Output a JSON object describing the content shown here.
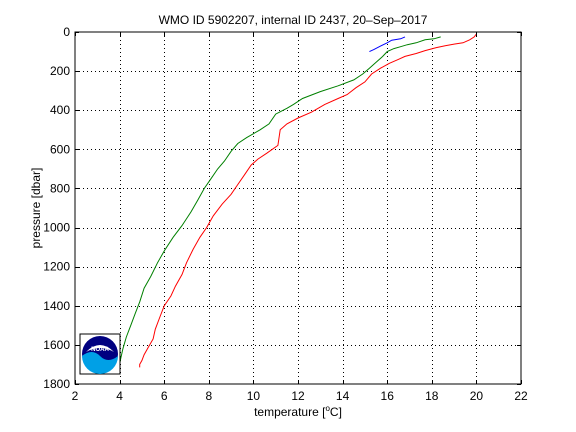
{
  "chart_data": {
    "type": "line",
    "title": "WMO ID 5902207, internal ID 2437, 20–Sep–2017",
    "xlabel": "temperature [°C]",
    "xlabel_parts": {
      "pre": "temperature [",
      "deg": "o",
      "post": "C]"
    },
    "ylabel": "pressure [dbar]",
    "xlim": [
      2,
      22
    ],
    "ylim": [
      0,
      1800
    ],
    "y_reversed": true,
    "grid": true,
    "grid_style": "dotted",
    "xticks": [
      2,
      4,
      6,
      8,
      10,
      12,
      14,
      16,
      18,
      20,
      22
    ],
    "yticks": [
      0,
      200,
      400,
      600,
      800,
      1000,
      1200,
      1400,
      1600,
      1800
    ],
    "series": [
      {
        "color": "#ff0000",
        "points": [
          [
            20.0,
            10
          ],
          [
            19.9,
            25
          ],
          [
            19.7,
            40
          ],
          [
            19.4,
            55
          ],
          [
            19.0,
            62
          ],
          [
            18.6,
            70
          ],
          [
            18.2,
            80
          ],
          [
            17.7,
            95
          ],
          [
            17.3,
            110
          ],
          [
            16.8,
            125
          ],
          [
            16.5,
            140
          ],
          [
            16.1,
            160
          ],
          [
            15.7,
            185
          ],
          [
            15.3,
            215
          ],
          [
            15.0,
            255
          ],
          [
            14.6,
            285
          ],
          [
            14.2,
            320
          ],
          [
            13.8,
            340
          ],
          [
            13.2,
            370
          ],
          [
            12.6,
            410
          ],
          [
            12.0,
            440
          ],
          [
            11.5,
            470
          ],
          [
            11.2,
            500
          ],
          [
            11.1,
            580
          ],
          [
            10.6,
            620
          ],
          [
            10.2,
            650
          ],
          [
            9.9,
            680
          ],
          [
            9.6,
            730
          ],
          [
            9.3,
            780
          ],
          [
            9.0,
            830
          ],
          [
            8.6,
            880
          ],
          [
            8.2,
            940
          ],
          [
            7.9,
            1000
          ],
          [
            7.6,
            1050
          ],
          [
            7.3,
            1110
          ],
          [
            7.0,
            1180
          ],
          [
            6.8,
            1240
          ],
          [
            6.5,
            1300
          ],
          [
            6.3,
            1350
          ],
          [
            6.0,
            1400
          ],
          [
            5.8,
            1460
          ],
          [
            5.6,
            1520
          ],
          [
            5.5,
            1570
          ],
          [
            5.3,
            1610
          ],
          [
            5.1,
            1650
          ],
          [
            5.0,
            1680
          ],
          [
            4.9,
            1700
          ],
          [
            4.9,
            1715
          ]
        ]
      },
      {
        "color": "#008000",
        "points": [
          [
            18.4,
            25
          ],
          [
            18.1,
            35
          ],
          [
            17.7,
            40
          ],
          [
            17.3,
            55
          ],
          [
            16.9,
            65
          ],
          [
            16.6,
            75
          ],
          [
            16.3,
            85
          ],
          [
            16.0,
            100
          ],
          [
            15.8,
            125
          ],
          [
            15.5,
            155
          ],
          [
            15.2,
            185
          ],
          [
            14.9,
            215
          ],
          [
            14.5,
            245
          ],
          [
            13.8,
            275
          ],
          [
            13.0,
            305
          ],
          [
            12.2,
            340
          ],
          [
            11.8,
            370
          ],
          [
            11.5,
            390
          ],
          [
            11.0,
            420
          ],
          [
            10.7,
            470
          ],
          [
            10.3,
            500
          ],
          [
            9.7,
            540
          ],
          [
            9.3,
            570
          ],
          [
            9.0,
            610
          ],
          [
            8.7,
            660
          ],
          [
            8.4,
            700
          ],
          [
            8.1,
            750
          ],
          [
            7.8,
            800
          ],
          [
            7.5,
            860
          ],
          [
            7.2,
            920
          ],
          [
            6.8,
            990
          ],
          [
            6.4,
            1050
          ],
          [
            6.0,
            1120
          ],
          [
            5.7,
            1180
          ],
          [
            5.4,
            1250
          ],
          [
            5.1,
            1310
          ],
          [
            4.9,
            1380
          ],
          [
            4.7,
            1440
          ],
          [
            4.5,
            1500
          ],
          [
            4.3,
            1560
          ],
          [
            4.15,
            1620
          ],
          [
            4.05,
            1670
          ],
          [
            4.0,
            1700
          ]
        ]
      },
      {
        "color": "#0000ff",
        "points": [
          [
            16.8,
            25
          ],
          [
            16.6,
            35
          ],
          [
            16.2,
            42
          ],
          [
            16.0,
            55
          ],
          [
            15.7,
            72
          ],
          [
            15.4,
            90
          ],
          [
            15.2,
            100
          ]
        ]
      }
    ]
  },
  "logo": {
    "text": "NOAA",
    "colors": [
      "#000080",
      "#00a0e6",
      "#ffffff"
    ]
  }
}
